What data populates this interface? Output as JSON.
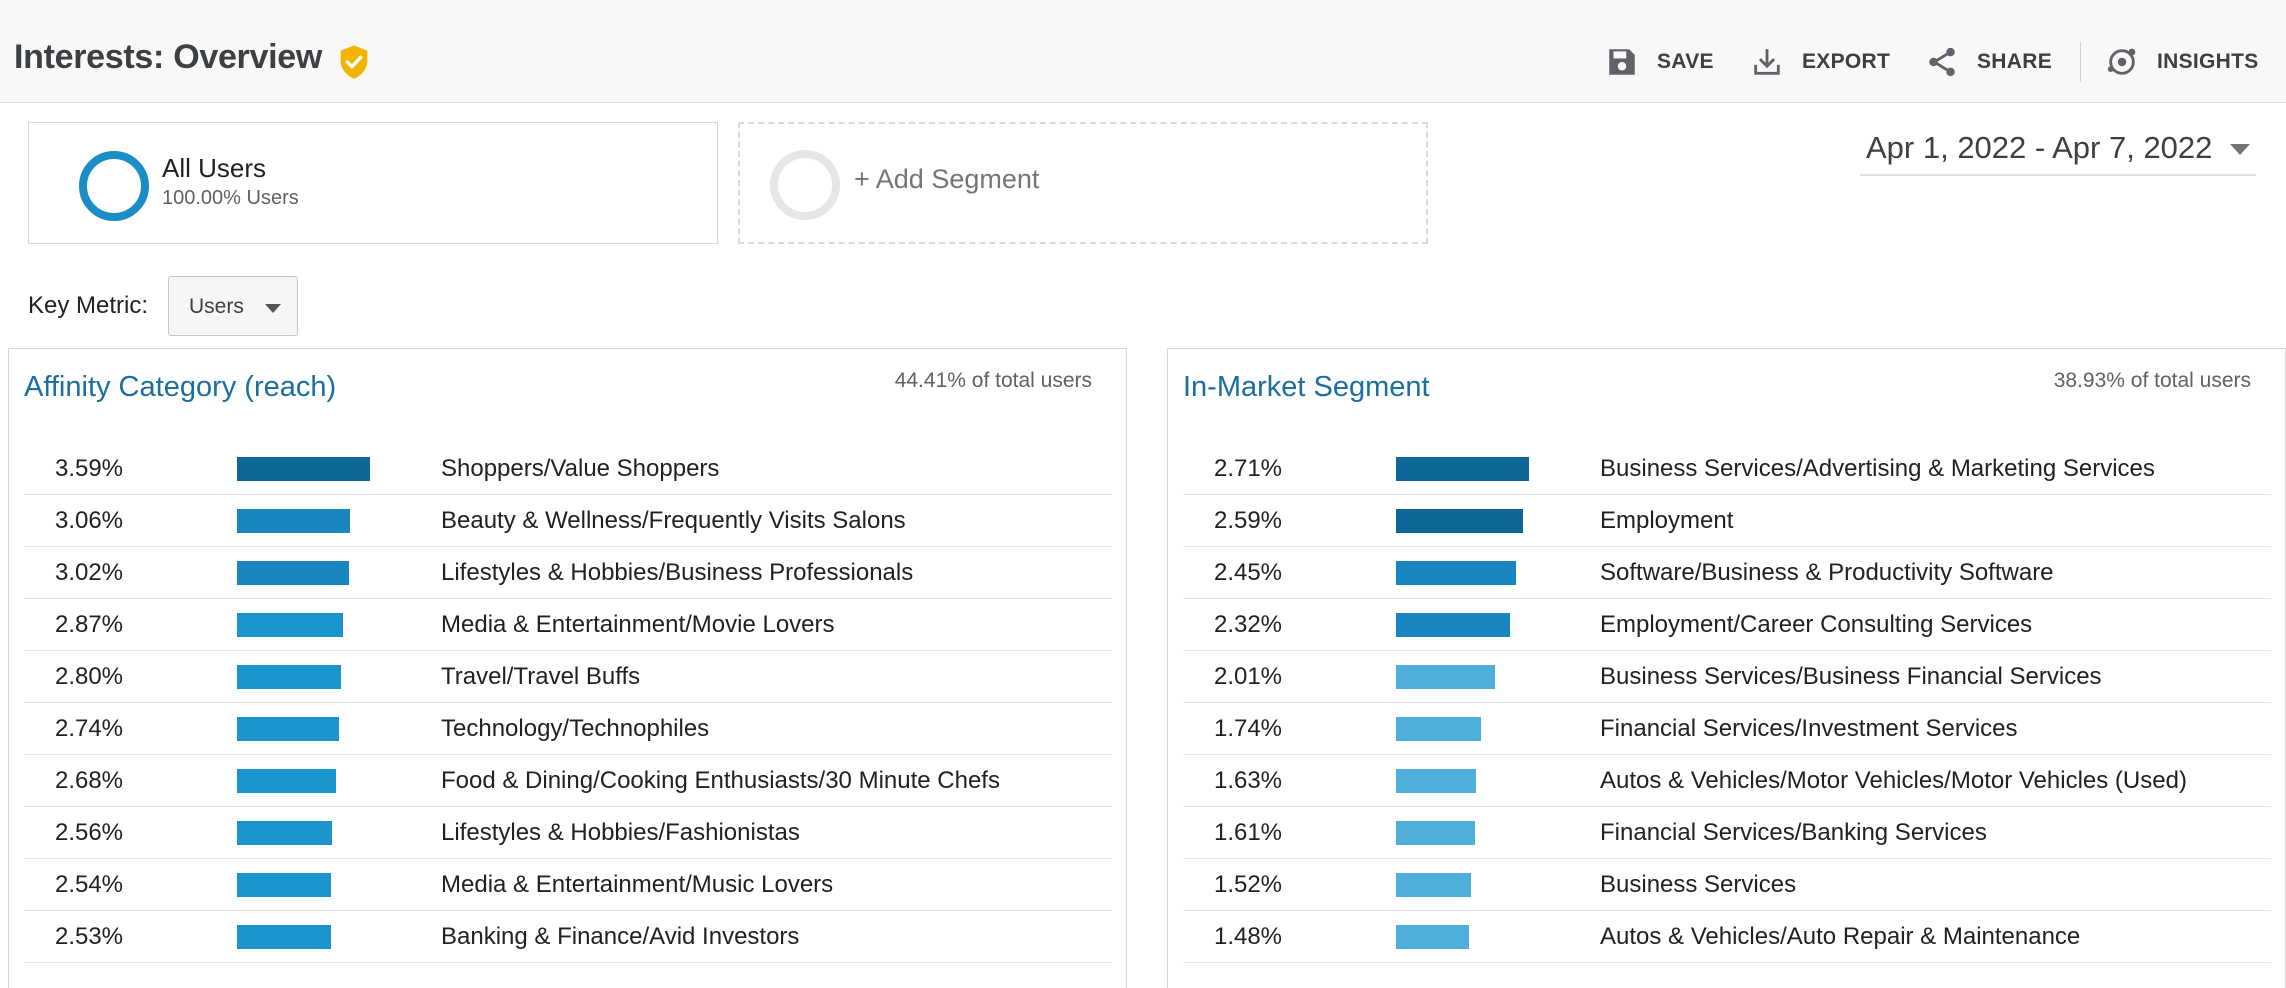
{
  "header": {
    "title": "Interests: Overview",
    "actions": [
      {
        "label": "SAVE",
        "icon": "floppy-disk-icon"
      },
      {
        "label": "EXPORT",
        "icon": "download-icon"
      },
      {
        "label": "SHARE",
        "icon": "share-icon"
      },
      {
        "label": "INSIGHTS",
        "icon": "insights-icon"
      }
    ]
  },
  "segments": {
    "all_users": {
      "name": "All Users",
      "sub": "100.00% Users"
    },
    "add_label": "+ Add Segment"
  },
  "date_range": "Apr 1, 2022 - Apr 7, 2022",
  "key_metric": {
    "label": "Key Metric:",
    "value": "Users"
  },
  "affinity": {
    "title": "Affinity Category (reach)",
    "note": "44.41% of total users",
    "rows": [
      {
        "pct": "3.59%",
        "value": 3.59,
        "label": "Shoppers/Value Shoppers"
      },
      {
        "pct": "3.06%",
        "value": 3.06,
        "label": "Beauty & Wellness/Frequently Visits Salons"
      },
      {
        "pct": "3.02%",
        "value": 3.02,
        "label": "Lifestyles & Hobbies/Business Professionals"
      },
      {
        "pct": "2.87%",
        "value": 2.87,
        "label": "Media & Entertainment/Movie Lovers"
      },
      {
        "pct": "2.80%",
        "value": 2.8,
        "label": "Travel/Travel Buffs"
      },
      {
        "pct": "2.74%",
        "value": 2.74,
        "label": "Technology/Technophiles"
      },
      {
        "pct": "2.68%",
        "value": 2.68,
        "label": "Food & Dining/Cooking Enthusiasts/30 Minute Chefs"
      },
      {
        "pct": "2.56%",
        "value": 2.56,
        "label": "Lifestyles & Hobbies/Fashionistas"
      },
      {
        "pct": "2.54%",
        "value": 2.54,
        "label": "Media & Entertainment/Music Lovers"
      },
      {
        "pct": "2.53%",
        "value": 2.53,
        "label": "Banking & Finance/Avid Investors"
      }
    ]
  },
  "in_market": {
    "title": "In-Market Segment",
    "note": "38.93% of total users",
    "rows": [
      {
        "pct": "2.71%",
        "value": 2.71,
        "label": "Business Services/Advertising & Marketing Services"
      },
      {
        "pct": "2.59%",
        "value": 2.59,
        "label": "Employment"
      },
      {
        "pct": "2.45%",
        "value": 2.45,
        "label": "Software/Business & Productivity Software"
      },
      {
        "pct": "2.32%",
        "value": 2.32,
        "label": "Employment/Career Consulting Services"
      },
      {
        "pct": "2.01%",
        "value": 2.01,
        "label": "Business Services/Business Financial Services"
      },
      {
        "pct": "1.74%",
        "value": 1.74,
        "label": "Financial Services/Investment Services"
      },
      {
        "pct": "1.63%",
        "value": 1.63,
        "label": "Autos & Vehicles/Motor Vehicles/Motor Vehicles (Used)"
      },
      {
        "pct": "1.61%",
        "value": 1.61,
        "label": "Financial Services/Banking Services"
      },
      {
        "pct": "1.52%",
        "value": 1.52,
        "label": "Business Services"
      },
      {
        "pct": "1.48%",
        "value": 1.48,
        "label": "Autos & Vehicles/Auto Repair & Maintenance"
      }
    ]
  },
  "colors": {
    "bar_dark": "#0f6797",
    "bar_mid": "#1a86c0",
    "bar_light": "#4fafdb",
    "link": "#1a6fa0",
    "ring": "#1a8dc6",
    "verified": "#f2b400"
  }
}
